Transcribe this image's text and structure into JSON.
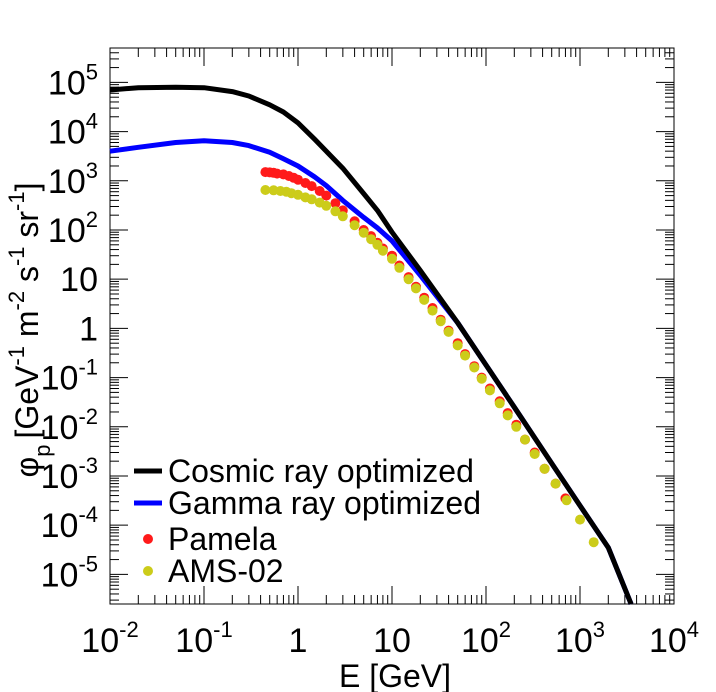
{
  "chart_data": {
    "type": "line",
    "xlabel": "E [GeV]",
    "ylabel": "φp [GeV-1 m-2 s-1 sr-1]",
    "ylabel_parts": {
      "sym": "φ",
      "sub": "p",
      "b1": "[GeV",
      "e1": "-1",
      "b2": " m",
      "e2": "-2",
      "b3": " s",
      "e3": "-1",
      "b4": " sr",
      "e4": "-1",
      "b5": "]"
    },
    "x_scale": "log",
    "y_scale": "log",
    "xlim": [
      0.01,
      10000
    ],
    "ylim": [
      2.5e-06,
      500000
    ],
    "x_ticks": [
      {
        "value": 0.01,
        "base": "10",
        "exp": "-2"
      },
      {
        "value": 0.1,
        "base": "10",
        "exp": "-1"
      },
      {
        "value": 1,
        "base": "1",
        "exp": ""
      },
      {
        "value": 10,
        "base": "10",
        "exp": ""
      },
      {
        "value": 100,
        "base": "10",
        "exp": "2"
      },
      {
        "value": 1000,
        "base": "10",
        "exp": "3"
      },
      {
        "value": 10000,
        "base": "10",
        "exp": "4"
      }
    ],
    "y_ticks": [
      {
        "value": 1e-05,
        "base": "10",
        "exp": "-5"
      },
      {
        "value": 0.0001,
        "base": "10",
        "exp": "-4"
      },
      {
        "value": 0.001,
        "base": "10",
        "exp": "-3"
      },
      {
        "value": 0.01,
        "base": "10",
        "exp": "-2"
      },
      {
        "value": 0.1,
        "base": "10",
        "exp": "-1"
      },
      {
        "value": 1,
        "base": "1",
        "exp": ""
      },
      {
        "value": 10,
        "base": "10",
        "exp": ""
      },
      {
        "value": 100,
        "base": "10",
        "exp": "2"
      },
      {
        "value": 1000,
        "base": "10",
        "exp": "3"
      },
      {
        "value": 10000,
        "base": "10",
        "exp": "4"
      },
      {
        "value": 100000,
        "base": "10",
        "exp": "5"
      }
    ],
    "legend_position": "bottom-left",
    "grid": false,
    "series": [
      {
        "name": "Cosmic ray optimized",
        "kind": "line",
        "color": "#000000",
        "points": [
          [
            0.01,
            70000
          ],
          [
            0.02,
            78000
          ],
          [
            0.05,
            80000
          ],
          [
            0.1,
            78000
          ],
          [
            0.2,
            65000
          ],
          [
            0.3,
            53000
          ],
          [
            0.5,
            35000
          ],
          [
            0.7,
            25000
          ],
          [
            1,
            15000
          ],
          [
            1.5,
            7000
          ],
          [
            2,
            4000
          ],
          [
            3,
            1800
          ],
          [
            5,
            550
          ],
          [
            7,
            250
          ],
          [
            10,
            90
          ],
          [
            20,
            15
          ],
          [
            50,
            1.3
          ],
          [
            100,
            0.18
          ],
          [
            200,
            0.025
          ],
          [
            500,
            0.0018
          ],
          [
            1000,
            0.00025
          ],
          [
            2000,
            3.5e-05
          ],
          [
            3500,
            2.5e-06
          ]
        ]
      },
      {
        "name": "Gamma ray optimized",
        "kind": "line",
        "color": "#0000ff",
        "points": [
          [
            0.01,
            4000
          ],
          [
            0.02,
            4800
          ],
          [
            0.05,
            6000
          ],
          [
            0.1,
            6500
          ],
          [
            0.2,
            6000
          ],
          [
            0.3,
            5200
          ],
          [
            0.5,
            3800
          ],
          [
            0.7,
            2800
          ],
          [
            1,
            2000
          ],
          [
            1.5,
            1200
          ],
          [
            2,
            800
          ],
          [
            3,
            400
          ],
          [
            5,
            180
          ],
          [
            7,
            110
          ],
          [
            10,
            60
          ],
          [
            20,
            12
          ],
          [
            50,
            1.3
          ],
          [
            100,
            0.18
          ],
          [
            200,
            0.025
          ],
          [
            500,
            0.0018
          ],
          [
            1000,
            0.00025
          ],
          [
            2000,
            3.5e-05
          ],
          [
            3500,
            2.5e-06
          ]
        ]
      },
      {
        "name": "Pamela",
        "kind": "points",
        "color": "#ff1a1a",
        "points": [
          [
            0.45,
            1500
          ],
          [
            0.5,
            1480
          ],
          [
            0.55,
            1450
          ],
          [
            0.6,
            1400
          ],
          [
            0.7,
            1350
          ],
          [
            0.8,
            1250
          ],
          [
            0.9,
            1150
          ],
          [
            1,
            1050
          ],
          [
            1.2,
            900
          ],
          [
            1.4,
            780
          ],
          [
            1.7,
            620
          ],
          [
            2,
            500
          ],
          [
            2.5,
            350
          ],
          [
            3,
            250
          ],
          [
            4,
            150
          ],
          [
            5,
            100
          ],
          [
            6,
            75
          ],
          [
            7,
            55
          ],
          [
            8,
            42
          ],
          [
            10,
            30
          ],
          [
            12,
            19
          ],
          [
            15,
            11
          ],
          [
            18,
            7
          ],
          [
            22,
            4.2
          ],
          [
            27,
            2.6
          ],
          [
            33,
            1.5
          ],
          [
            40,
            0.9
          ],
          [
            50,
            0.5
          ],
          [
            60,
            0.3
          ],
          [
            75,
            0.17
          ],
          [
            90,
            0.1
          ],
          [
            110,
            0.06
          ],
          [
            140,
            0.033
          ],
          [
            170,
            0.019
          ],
          [
            210,
            0.011
          ],
          [
            260,
            0.0055
          ],
          [
            330,
            0.003
          ],
          [
            420,
            0.0014
          ],
          [
            550,
            0.0007
          ],
          [
            700,
            0.00035
          ]
        ]
      },
      {
        "name": "AMS-02",
        "kind": "points",
        "color": "#cccc1a",
        "points": [
          [
            0.45,
            650
          ],
          [
            0.55,
            640
          ],
          [
            0.65,
            620
          ],
          [
            0.75,
            600
          ],
          [
            0.85,
            560
          ],
          [
            1,
            520
          ],
          [
            1.2,
            460
          ],
          [
            1.4,
            420
          ],
          [
            1.7,
            360
          ],
          [
            2,
            310
          ],
          [
            2.5,
            240
          ],
          [
            3,
            190
          ],
          [
            4,
            125
          ],
          [
            5,
            88
          ],
          [
            6,
            65
          ],
          [
            7,
            50
          ],
          [
            8,
            38
          ],
          [
            10,
            26
          ],
          [
            12,
            17
          ],
          [
            15,
            10
          ],
          [
            18,
            6.5
          ],
          [
            22,
            3.8
          ],
          [
            27,
            2.3
          ],
          [
            33,
            1.4
          ],
          [
            40,
            0.85
          ],
          [
            50,
            0.45
          ],
          [
            60,
            0.28
          ],
          [
            75,
            0.16
          ],
          [
            90,
            0.095
          ],
          [
            110,
            0.055
          ],
          [
            140,
            0.03
          ],
          [
            170,
            0.017
          ],
          [
            210,
            0.01
          ],
          [
            260,
            0.0055
          ],
          [
            330,
            0.0028
          ],
          [
            420,
            0.0014
          ],
          [
            550,
            0.0007
          ],
          [
            720,
            0.00032
          ],
          [
            1000,
            0.00013
          ],
          [
            1400,
            4.5e-05
          ]
        ]
      }
    ]
  }
}
